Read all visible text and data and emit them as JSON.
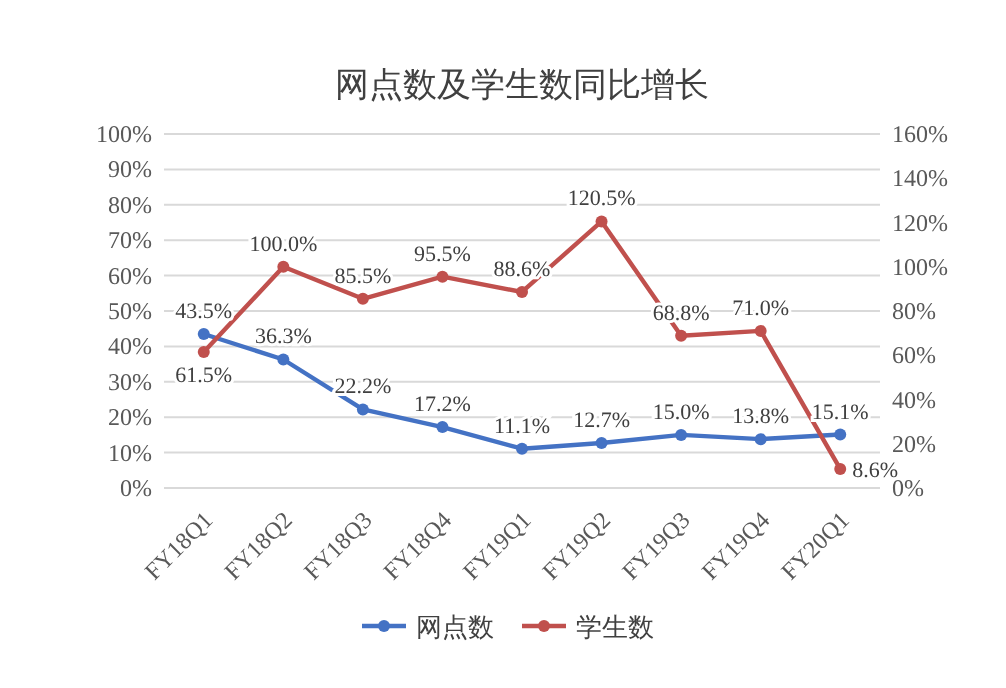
{
  "chart_data": {
    "type": "line",
    "title": "网点数及学生数同比增长",
    "categories": [
      "FY18Q1",
      "FY18Q2",
      "FY18Q3",
      "FY18Q4",
      "FY19Q1",
      "FY19Q2",
      "FY19Q3",
      "FY19Q4",
      "FY20Q1"
    ],
    "series": [
      {
        "name": "网点数",
        "color": "#4472c4",
        "values": [
          43.5,
          36.3,
          22.2,
          17.2,
          11.1,
          12.7,
          15.0,
          13.8,
          15.1
        ],
        "value_labels": [
          "43.5%",
          "36.3%",
          "22.2%",
          "17.2%",
          "11.1%",
          "12.7%",
          "15.0%",
          "13.8%",
          "15.1%"
        ]
      },
      {
        "name": "学生数",
        "color": "#c0504d",
        "axis": "y2",
        "values": [
          61.5,
          100.0,
          85.5,
          95.5,
          88.6,
          120.5,
          68.8,
          71.0,
          8.6
        ],
        "value_labels": [
          "61.5%",
          "100.0%",
          "85.5%",
          "95.5%",
          "88.6%",
          "120.5%",
          "68.8%",
          "71.0%",
          "8.6%"
        ]
      }
    ],
    "ylim": [
      0,
      100
    ],
    "yticks": [
      {
        "value": 0,
        "label": "0%"
      },
      {
        "value": 10,
        "label": "10%"
      },
      {
        "value": 20,
        "label": "20%"
      },
      {
        "value": 30,
        "label": "30%"
      },
      {
        "value": 40,
        "label": "40%"
      },
      {
        "value": 50,
        "label": "50%"
      },
      {
        "value": 60,
        "label": "60%"
      },
      {
        "value": 70,
        "label": "70%"
      },
      {
        "value": 80,
        "label": "80%"
      },
      {
        "value": 90,
        "label": "90%"
      },
      {
        "value": 100,
        "label": "100%"
      }
    ],
    "y2lim": [
      0,
      160
    ],
    "y2ticks": [
      {
        "value": 0,
        "label": "0%"
      },
      {
        "value": 20,
        "label": "20%"
      },
      {
        "value": 40,
        "label": "40%"
      },
      {
        "value": 60,
        "label": "60%"
      },
      {
        "value": 80,
        "label": "80%"
      },
      {
        "value": 100,
        "label": "100%"
      },
      {
        "value": 120,
        "label": "120%"
      },
      {
        "value": 140,
        "label": "140%"
      },
      {
        "value": 160,
        "label": "160%"
      }
    ],
    "grid": "y",
    "legend": "bottom",
    "marker": "circle",
    "line_style": "solid"
  }
}
